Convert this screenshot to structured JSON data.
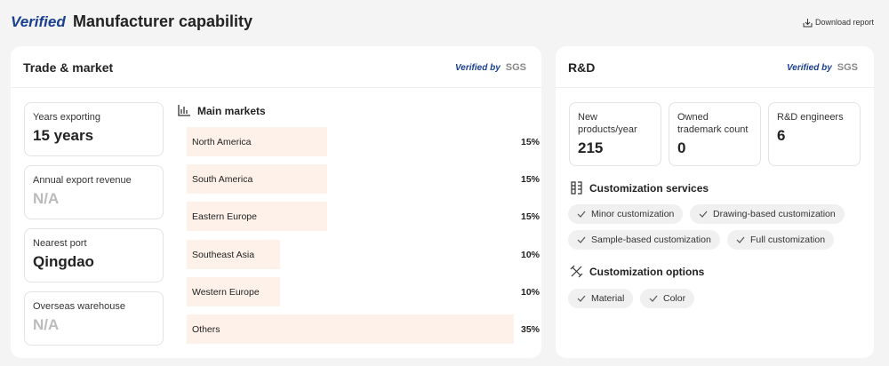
{
  "header": {
    "logo": "Verified",
    "title": "Manufacturer capability",
    "download": "Download report"
  },
  "trade": {
    "title": "Trade & market",
    "verified_by": "Verified by",
    "certifier": "SGS",
    "stats": [
      {
        "label": "Years exporting",
        "value": "15 years"
      },
      {
        "label": "Annual export revenue",
        "value": "N/A"
      },
      {
        "label": "Nearest port",
        "value": "Qingdao"
      },
      {
        "label": "Overseas warehouse",
        "value": "N/A"
      }
    ],
    "main_markets": {
      "title": "Main markets",
      "items": [
        {
          "name": "North America",
          "value": 15,
          "label": "15%"
        },
        {
          "name": "South America",
          "value": 15,
          "label": "15%"
        },
        {
          "name": "Eastern Europe",
          "value": 15,
          "label": "15%"
        },
        {
          "name": "Southeast Asia",
          "value": 10,
          "label": "10%"
        },
        {
          "name": "Western Europe",
          "value": 10,
          "label": "10%"
        },
        {
          "name": "Others",
          "value": 35,
          "label": "35%"
        }
      ]
    }
  },
  "rd": {
    "title": "R&D",
    "verified_by": "Verified by",
    "certifier": "SGS",
    "stats": [
      {
        "label": "New products/year",
        "value": "215"
      },
      {
        "label": "Owned trademark count",
        "value": "0"
      },
      {
        "label": "R&D engineers",
        "value": "6"
      }
    ],
    "services": {
      "title": "Customization services",
      "tags": [
        "Minor customization",
        "Drawing-based customization",
        "Sample-based customization",
        "Full customization"
      ]
    },
    "options": {
      "title": "Customization options",
      "tags": [
        "Material",
        "Color"
      ]
    }
  }
}
